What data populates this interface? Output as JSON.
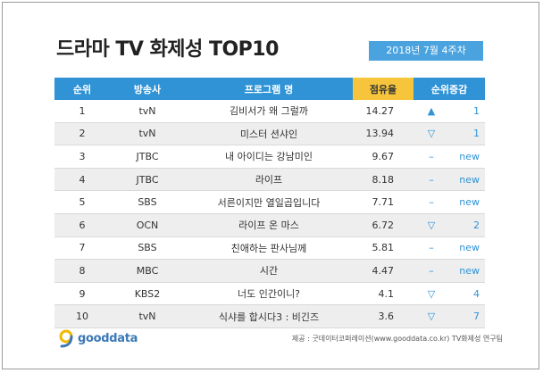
{
  "title": "드라마 TV 화제성 TOP10",
  "week_label": "2018년 7월 4주차",
  "logo_text": "gooddata",
  "source": "제공 : 굿데이터코퍼레이션(www.gooddata.co.kr)  TV화제성 연구팀",
  "colors": {
    "header": "#2f93d6",
    "header_highlight": "#f7c53c",
    "accent": "#2f93d6",
    "badge": "#4aa3de"
  },
  "chart_data": {
    "type": "table",
    "title": "드라마 TV 화제성 TOP10",
    "columns": [
      "순위",
      "방송사",
      "프로그램 명",
      "점유율",
      "순위증감"
    ],
    "rows": [
      {
        "rank": "1",
        "channel": "tvN",
        "program": "김비서가 왜 그럴까",
        "share": "14.27",
        "symbol": "▲",
        "change": "1"
      },
      {
        "rank": "2",
        "channel": "tvN",
        "program": "미스터 션샤인",
        "share": "13.94",
        "symbol": "▽",
        "change": "1"
      },
      {
        "rank": "3",
        "channel": "JTBC",
        "program": "내 아이디는 강남미인",
        "share": "9.67",
        "symbol": "–",
        "change": "new"
      },
      {
        "rank": "4",
        "channel": "JTBC",
        "program": "라이프",
        "share": "8.18",
        "symbol": "–",
        "change": "new"
      },
      {
        "rank": "5",
        "channel": "SBS",
        "program": "서른이지만 열일곱입니다",
        "share": "7.71",
        "symbol": "–",
        "change": "new"
      },
      {
        "rank": "6",
        "channel": "OCN",
        "program": "라이프 온 마스",
        "share": "6.72",
        "symbol": "▽",
        "change": "2"
      },
      {
        "rank": "7",
        "channel": "SBS",
        "program": "친애하는 판사님께",
        "share": "5.81",
        "symbol": "–",
        "change": "new"
      },
      {
        "rank": "8",
        "channel": "MBC",
        "program": "시간",
        "share": "4.47",
        "symbol": "–",
        "change": "new"
      },
      {
        "rank": "9",
        "channel": "KBS2",
        "program": "너도 인간이니?",
        "share": "4.1",
        "symbol": "▽",
        "change": "4"
      },
      {
        "rank": "10",
        "channel": "tvN",
        "program": "식샤를 합시다3 : 비긴즈",
        "share": "3.6",
        "symbol": "▽",
        "change": "7"
      }
    ]
  }
}
